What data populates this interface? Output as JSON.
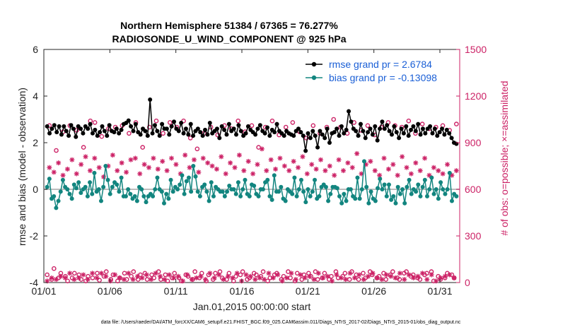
{
  "chart_data": {
    "type": "line",
    "title": "Northern Hemisphere 51384 / 67365 = 76.277%",
    "subtitle": "RADIOSONDE_U_WIND_COMPONENT @ 925 hPa",
    "xlabel": "Jan.01,2015 00:00:00 start",
    "ylabel": "rmse and bias (model - observation)",
    "y2label": "# of obs: o=possible; ×=assimilated",
    "footnote": "data file: /Users/raeder/DAI/ATM_forcXX/CAM6_setup/f.e21.FHIST_BGC.f09_025.CAM6assim.011/Diags_NTrS_2017-02/Diags_NTrS_2015-01/obs_diag_output.nc",
    "xlim": [
      1,
      32.5
    ],
    "ylim": [
      -4,
      6
    ],
    "y2lim": [
      0,
      1500
    ],
    "x_ticks": [
      1,
      6,
      11,
      16,
      21,
      26,
      31
    ],
    "x_tick_labels": [
      "01/01",
      "01/06",
      "01/11",
      "01/16",
      "01/21",
      "01/26",
      "01/31"
    ],
    "y_ticks": [
      -4,
      -2,
      0,
      2,
      4,
      6
    ],
    "y2_ticks": [
      0,
      300,
      600,
      900,
      1200,
      1500
    ],
    "zero_line": 0,
    "colors": {
      "rmse": "#000000",
      "bias": "#12857f",
      "obs": "#cc2266",
      "legend_text": "#1a5fd6",
      "zero_line": "#bdbdbd",
      "axis": "#262626"
    },
    "legend": {
      "position": "top-right",
      "entries": [
        "rmse grand pr = 2.6784",
        "bias grand pr = -0.13098"
      ]
    },
    "series": [
      {
        "name": "rmse",
        "style": "line-marker",
        "marker": "dot",
        "axis": "left",
        "values": [
          2.7,
          2.4,
          2.6,
          2.75,
          2.45,
          2.7,
          2.35,
          2.7,
          2.5,
          2.3,
          2.75,
          2.6,
          2.25,
          2.7,
          2.6,
          2.4,
          2.7,
          2.6,
          2.8,
          2.4,
          2.55,
          2.3,
          2.45,
          2.7,
          2.5,
          2.3,
          2.75,
          2.5,
          2.45,
          2.6,
          2.4,
          2.55,
          2.8,
          2.85,
          2.95,
          2.7,
          2.5,
          2.8,
          2.45,
          2.35,
          2.6,
          2.5,
          2.3,
          3.85,
          2.4,
          2.75,
          2.5,
          2.3,
          2.8,
          2.6,
          2.6,
          2.35,
          2.7,
          2.9,
          2.6,
          2.5,
          2.85,
          2.4,
          2.6,
          2.35,
          2.8,
          2.3,
          2.5,
          2.6,
          2.45,
          2.3,
          2.55,
          2.35,
          2.85,
          2.4,
          2.5,
          2.6,
          2.2,
          2.7,
          2.55,
          2.35,
          2.8,
          2.5,
          2.6,
          2.35,
          2.75,
          2.5,
          2.3,
          2.4,
          2.7,
          2.55,
          2.45,
          2.35,
          2.6,
          2.75,
          2.5,
          2.4,
          2.65,
          2.3,
          2.55,
          2.45,
          2.8,
          2.5,
          2.4,
          2.3,
          2.5,
          2.4,
          2.35,
          2.3,
          2.5,
          2.6,
          2.45,
          2.3,
          1.65,
          2.4,
          2.2,
          2.5,
          2.3,
          1.8,
          2.5,
          2.35,
          2.2,
          2.6,
          2.0,
          2.4,
          2.45,
          2.6,
          2.3,
          2.7,
          2.4,
          2.55,
          3.35,
          2.9,
          2.6,
          2.5,
          2.3,
          2.8,
          2.5,
          2.2,
          2.45,
          2.6,
          2.35,
          2.7,
          2.1,
          2.6,
          2.9,
          2.6,
          2.75,
          2.5,
          2.35,
          2.7,
          2.45,
          2.2,
          2.6,
          2.4,
          2.7,
          2.3,
          2.55,
          2.7,
          2.5,
          2.8,
          2.35,
          2.6,
          2.4,
          2.6,
          2.7,
          2.4,
          2.6,
          2.3,
          2.45,
          2.6,
          2.35,
          2.55,
          2.4,
          2.2,
          2.0,
          1.95
        ]
      },
      {
        "name": "bias",
        "style": "line-marker",
        "marker": "dot",
        "axis": "left",
        "values": [
          0.1,
          0.45,
          -0.4,
          -0.3,
          -0.8,
          -0.5,
          -0.1,
          0.4,
          0.1,
          0.0,
          -0.2,
          -0.4,
          0.2,
          0.05,
          0.3,
          -0.15,
          0.0,
          0.1,
          -0.3,
          0.3,
          -0.2,
          0.7,
          -0.1,
          0.0,
          -0.5,
          0.1,
          1.0,
          0.4,
          -0.2,
          0.1,
          0.3,
          0.2,
          -0.1,
          0.5,
          -0.3,
          -0.3,
          0.0,
          -0.2,
          -0.4,
          -0.3,
          -0.5,
          0.1,
          0.0,
          -0.3,
          -0.55,
          -0.3,
          -0.2,
          -0.3,
          0.0,
          0.5,
          0.0,
          -0.1,
          -0.6,
          -0.2,
          -0.4,
          0.4,
          -0.1,
          0.1,
          0.0,
          0.2,
          0.6,
          -0.2,
          0.35,
          0.5,
          -0.1,
          1.0,
          0.55,
          -0.1,
          -0.3,
          0.1,
          0.2,
          -0.1,
          -0.5,
          0.3,
          -0.3,
          0.1,
          0.0,
          -0.1,
          -0.1,
          -0.3,
          -0.1,
          0.15,
          0.0,
          0.0,
          -0.2,
          0.3,
          -0.3,
          0.0,
          0.4,
          -0.2,
          -0.3,
          0.2,
          0.15,
          -0.2,
          -0.3,
          0.0,
          0.0,
          0.3,
          0.4,
          -0.3,
          -0.45,
          0.6,
          -0.1,
          -0.1,
          0.1,
          -0.4,
          -0.5,
          0.0,
          -0.1,
          -0.2,
          0.5,
          -0.3,
          0.0,
          0.4,
          -0.1,
          -0.55,
          0.0,
          -0.3,
          -0.1,
          0.4,
          -0.4,
          -0.3,
          0.1,
          0.2,
          0.1,
          -0.5,
          -0.2,
          0.1,
          0.1,
          0.05,
          -0.3,
          -0.6,
          -0.2,
          -0.5,
          0.0,
          0.0,
          -0.3,
          -0.4,
          0.5,
          -0.4,
          0.0,
          1.2,
          0.1,
          -0.6,
          -0.1,
          -0.4,
          -0.5,
          0.05,
          0.45,
          0.0,
          0.2,
          -0.3,
          0.2,
          -0.45,
          -0.3,
          -0.6,
          0.1,
          -0.2,
          0.0,
          -0.6,
          0.1,
          0.4,
          -0.2,
          0.0,
          -0.1,
          0.2,
          -0.3,
          0.1,
          0.4,
          -0.3,
          0.0,
          0.5,
          -0.2,
          0.0,
          -0.4,
          0.3,
          0.0,
          -0.2,
          0.0,
          0.7,
          -0.5,
          -0.2,
          -0.3
        ]
      },
      {
        "name": "obs possible",
        "style": "marker",
        "marker": "circle",
        "axis": "right",
        "values": [
          50,
          1010,
          20,
          90,
          850,
          30,
          60,
          970,
          40,
          10,
          1010,
          30,
          60,
          980,
          50,
          20,
          870,
          10,
          40,
          1040,
          30,
          1030,
          60,
          15,
          940,
          40,
          70,
          990,
          20,
          50,
          1000,
          10,
          30,
          1010,
          60,
          20,
          960,
          40,
          70,
          1030,
          20,
          50,
          870,
          60,
          20,
          1000,
          50,
          30,
          1040,
          70,
          20,
          960,
          50,
          10,
          1030,
          30,
          60,
          1000,
          30,
          10,
          1040,
          50,
          40,
          930,
          20,
          70,
          860,
          30,
          60,
          960,
          10,
          50,
          1000,
          20,
          60,
          950,
          70,
          30,
          1010,
          20,
          60,
          990,
          10,
          40,
          1040,
          50,
          70,
          970,
          20,
          30,
          1010,
          60,
          50,
          870,
          40,
          70,
          1000,
          10,
          30,
          1040,
          50,
          60,
          950,
          20,
          40,
          1000,
          70,
          30,
          1030,
          10,
          60,
          970,
          20,
          50,
          930,
          60,
          40,
          1010,
          70,
          20,
          960,
          30,
          60,
          1000,
          20,
          40,
          1050,
          70,
          30,
          1000,
          40,
          60,
          960,
          20,
          70,
          1030,
          50,
          20,
          980,
          60,
          30,
          1010,
          70,
          50,
          950,
          30,
          40,
          1000,
          60,
          20,
          1030,
          50,
          70,
          1010,
          30,
          20,
          1000,
          60,
          70,
          1040,
          40,
          50,
          960,
          30,
          20,
          1020,
          50,
          60,
          990,
          70,
          10,
          1000,
          40,
          20,
          1010,
          30,
          60,
          980,
          50,
          30,
          1020
        ]
      },
      {
        "name": "obs assimilated",
        "style": "marker",
        "marker": "asterisk",
        "axis": "right",
        "values": [
          10,
          740,
          30,
          710,
          20,
          770,
          40,
          690,
          30,
          730,
          60,
          790,
          20,
          700,
          30,
          760,
          50,
          810,
          20,
          720,
          60,
          800,
          30,
          740,
          60,
          680,
          40,
          750,
          10,
          820,
          50,
          720,
          30,
          770,
          20,
          710,
          60,
          790,
          20,
          800,
          40,
          700,
          30,
          760,
          50,
          740,
          20,
          800,
          60,
          730,
          40,
          780,
          20,
          720,
          50,
          800,
          30,
          760,
          40,
          700,
          10,
          820,
          50,
          740,
          20,
          790,
          30,
          710,
          40,
          800,
          20,
          770,
          60,
          750,
          30,
          730,
          50,
          810,
          20,
          700,
          40,
          770,
          30,
          740,
          60,
          820,
          10,
          720,
          50,
          780,
          40,
          700,
          20,
          760,
          30,
          860,
          20,
          720,
          60,
          790,
          30,
          730,
          50,
          800,
          10,
          750,
          30,
          720,
          60,
          780,
          20,
          740,
          50,
          810,
          30,
          700,
          40,
          760,
          20,
          730,
          60,
          790,
          30,
          720,
          40,
          750,
          10,
          690,
          50,
          790,
          30,
          720,
          20,
          770,
          60,
          740,
          30,
          830,
          50,
          700,
          20,
          760,
          40,
          780,
          60,
          720,
          30,
          690,
          20,
          800,
          50,
          730,
          40,
          760,
          30,
          690,
          60,
          810,
          20,
          740,
          50,
          700,
          30,
          770,
          40,
          720,
          60,
          800,
          20,
          690,
          50,
          740,
          10,
          720,
          30,
          700,
          40,
          760,
          50,
          690,
          30,
          720
        ]
      }
    ]
  }
}
